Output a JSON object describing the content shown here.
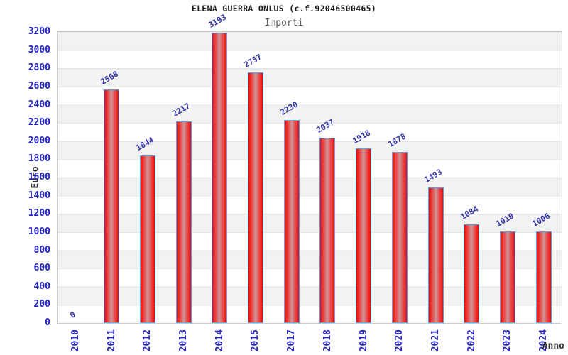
{
  "chart_data": {
    "type": "bar",
    "title": "ELENA GUERRA ONLUS (c.f.92046500465)",
    "subtitle": "Importi",
    "xlabel": "Anno",
    "ylabel": "Euro",
    "categories": [
      "2010",
      "2011",
      "2012",
      "2013",
      "2014",
      "2015",
      "2017",
      "2018",
      "2019",
      "2020",
      "2021",
      "2022",
      "2023",
      "2024"
    ],
    "values": [
      0,
      2568,
      1844,
      2217,
      3193,
      2757,
      2230,
      2037,
      1918,
      1878,
      1493,
      1084,
      1010,
      1006
    ],
    "ylim": [
      0,
      3200
    ],
    "ytick_step": 200,
    "grid": "horizontal-bands-alternating",
    "legend": "none",
    "bar_labels_rotation_deg": -30,
    "x_labels_rotation_deg": -90,
    "colors": {
      "bar_edge": "#d81212",
      "bar_center": "#cf9090",
      "bar_border": "#5aa2e6",
      "tick_label": "#2424c8",
      "value_label": "#3232a8",
      "title": "#1a1a1a",
      "subtitle": "#595959",
      "axis_title": "#2e2e2e",
      "band_gray": "#f2f2f3",
      "band_white": "#ffffff",
      "plot_border": "#cbcbcb"
    }
  }
}
